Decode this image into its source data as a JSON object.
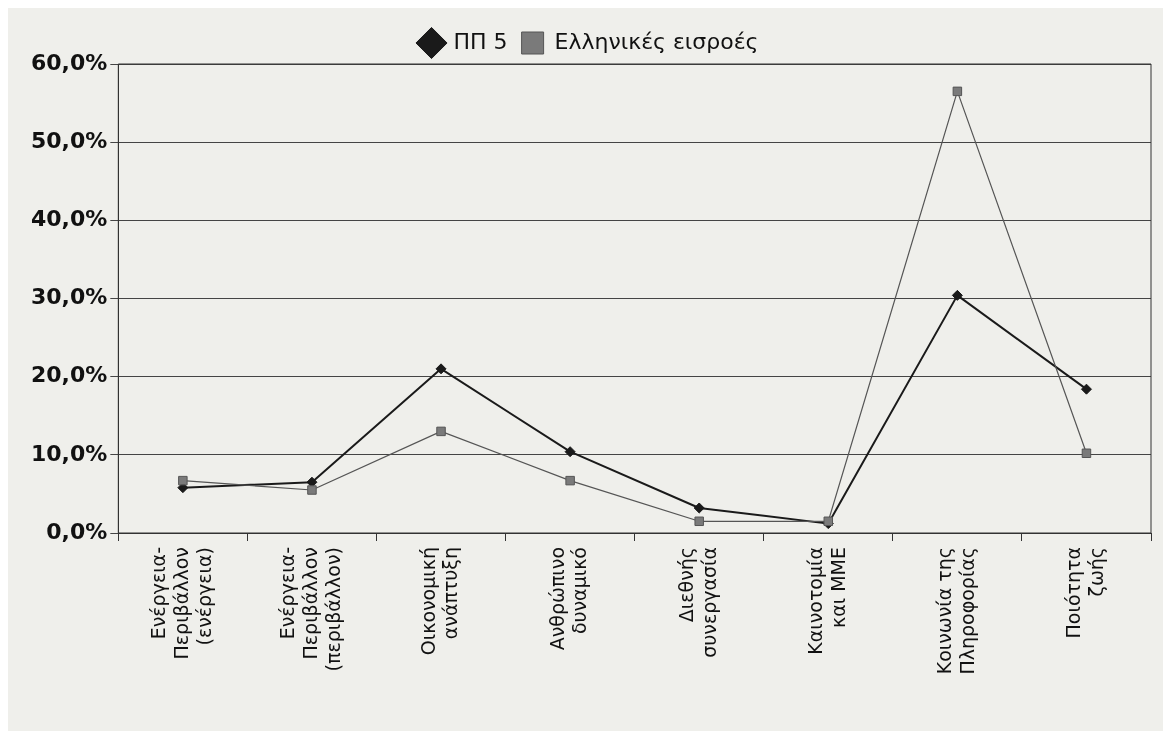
{
  "chart_data": {
    "type": "line",
    "categories": [
      "Ενέργεια-\nΠεριβάλλον\n(ενέργεια)",
      "Ενέργεια-\nΠεριβάλλον\n(περιβάλλον)",
      "Οικονομική\nανάπτυξη",
      "Ανθρώπινο\nδυναμικό",
      "Διεθνής\nσυνεργασία",
      "Καινοτομία\nκαι ΜΜΕ",
      "Κοινωνία της\nΠληροφορίας",
      "Ποιότητα\nζωής"
    ],
    "series": [
      {
        "name": "ΠΠ 5",
        "color": "#1a1a1a",
        "marker": "diamond",
        "values": [
          5.8,
          6.5,
          21.0,
          10.4,
          3.2,
          1.2,
          30.4,
          18.4
        ]
      },
      {
        "name": "Ελληνικές εισροές",
        "color": "#555555",
        "marker": "square",
        "values": [
          6.7,
          5.5,
          13.0,
          6.7,
          1.5,
          1.5,
          56.5,
          10.2
        ]
      }
    ],
    "ylim": [
      0,
      60
    ],
    "yticks": [
      {
        "value": 0,
        "label": "0,0%"
      },
      {
        "value": 10,
        "label": "10,0%"
      },
      {
        "value": 20,
        "label": "20,0%"
      },
      {
        "value": 30,
        "label": "30,0%"
      },
      {
        "value": 40,
        "label": "40,0%"
      },
      {
        "value": 50,
        "label": "50,0%"
      },
      {
        "value": 60,
        "label": "60,0%"
      }
    ],
    "grid": "y",
    "legend": "top",
    "line_style": "solid"
  }
}
